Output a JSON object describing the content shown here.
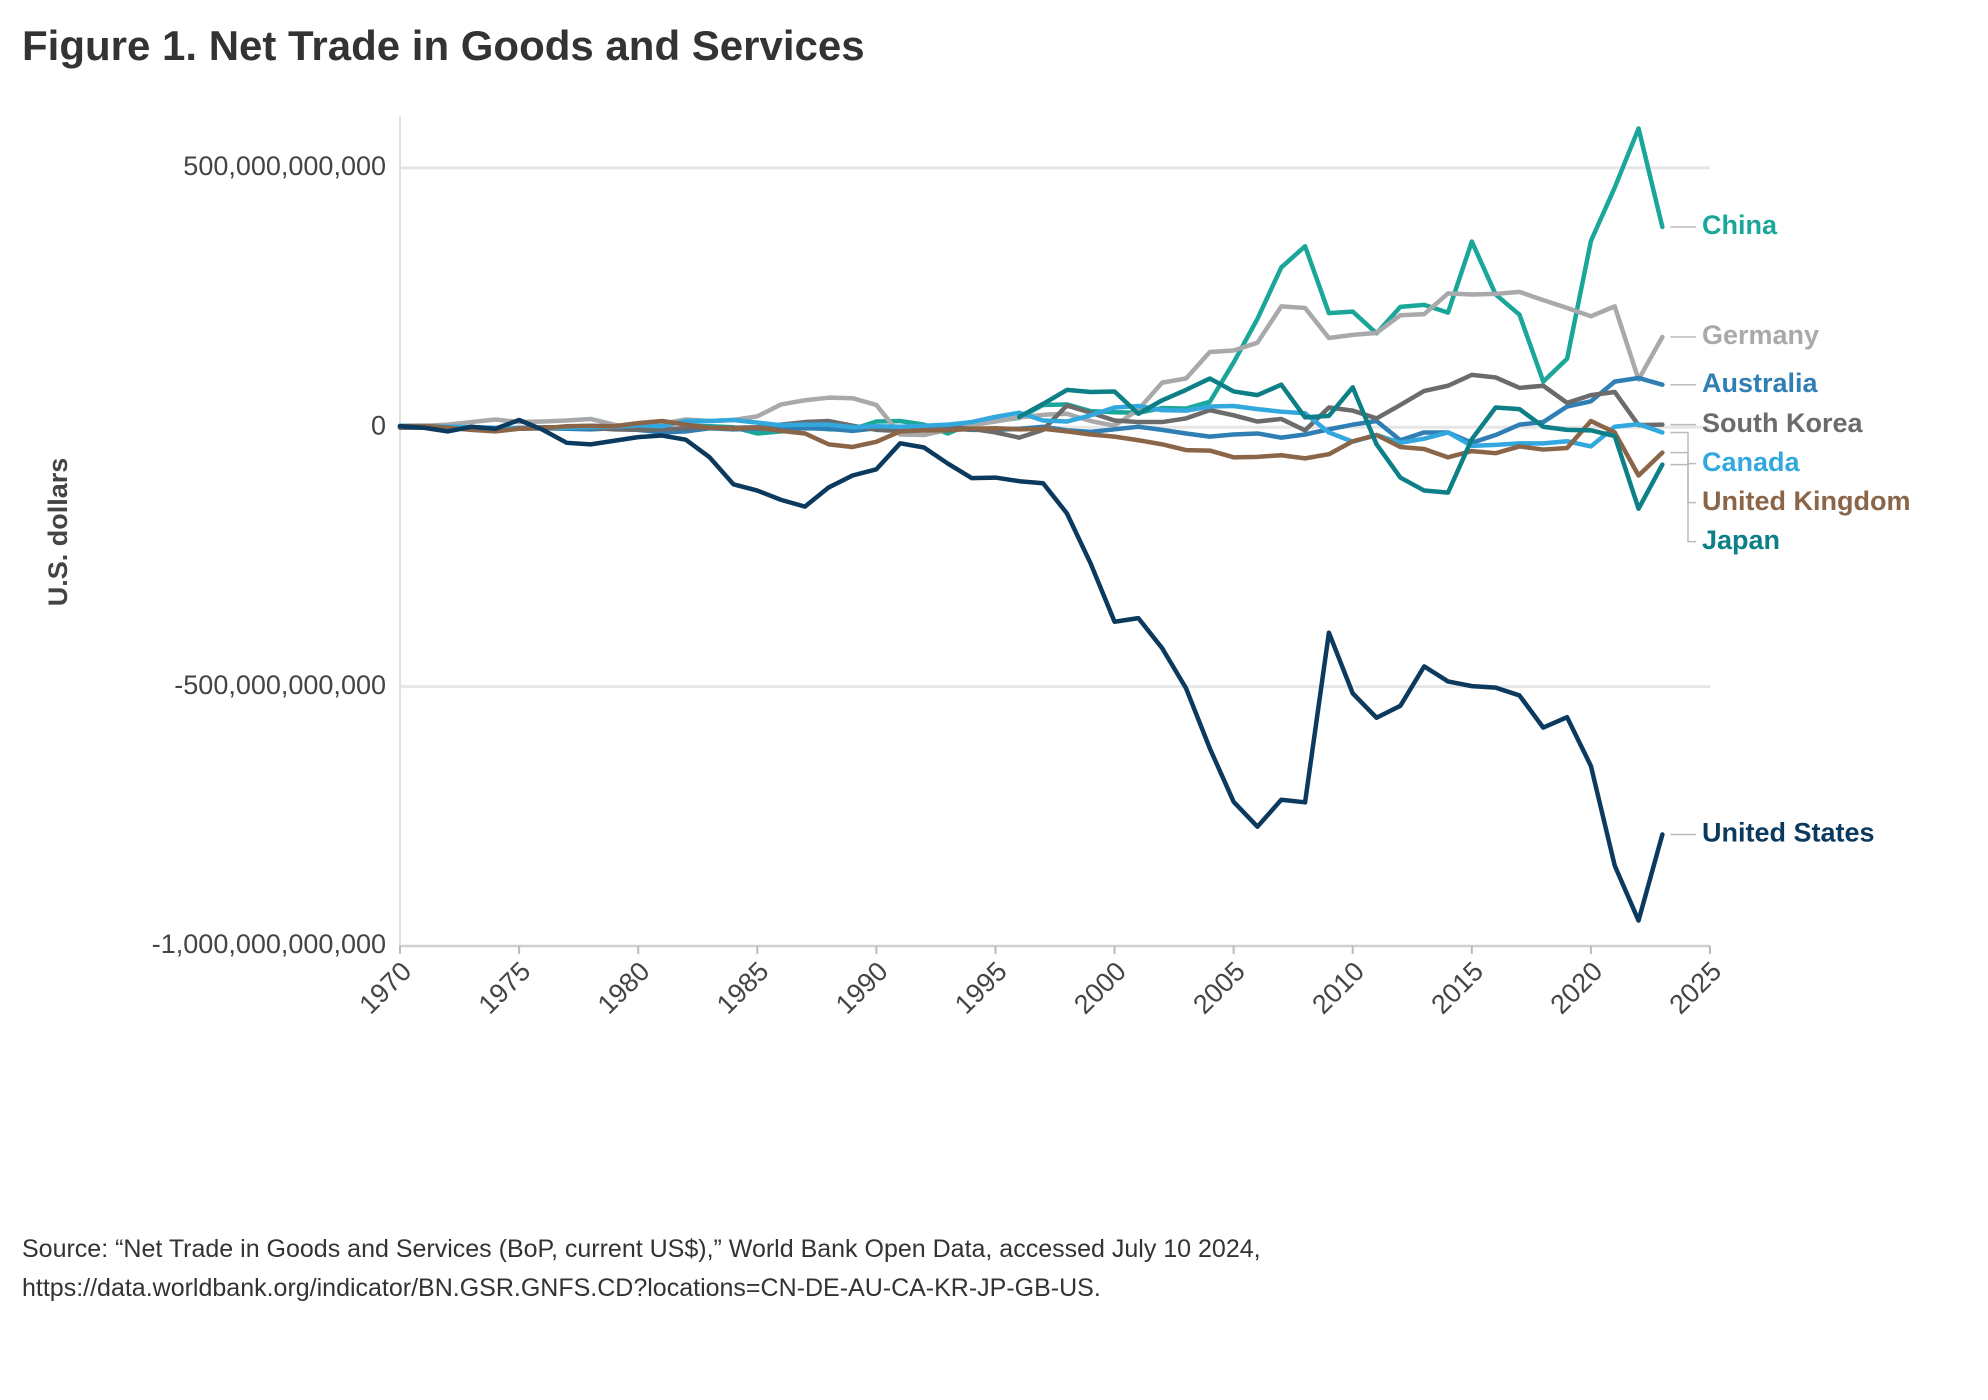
{
  "chart_data": {
    "type": "line",
    "title": "Figure 1. Net Trade in Goods and Services",
    "y_label": "U.S. dollars",
    "source": [
      "Source: “Net Trade in Goods and Services (BoP, current US$),” World Bank Open Data, accessed July 10 2024,",
      "https://data.worldbank.org/indicator/BN.GSR.GNFS.CD?locations=CN-DE-AU-CA-KR-JP-GB-US."
    ],
    "x": [
      1970,
      1971,
      1972,
      1973,
      1974,
      1975,
      1976,
      1977,
      1978,
      1979,
      1980,
      1981,
      1982,
      1983,
      1984,
      1985,
      1986,
      1987,
      1988,
      1989,
      1990,
      1991,
      1992,
      1993,
      1994,
      1995,
      1996,
      1997,
      1998,
      1999,
      2000,
      2001,
      2002,
      2003,
      2004,
      2005,
      2006,
      2007,
      2008,
      2009,
      2010,
      2011,
      2012,
      2013,
      2014,
      2015,
      2016,
      2017,
      2018,
      2019,
      2020,
      2021,
      2022,
      2023
    ],
    "xlim": [
      1970,
      2025
    ],
    "xticks": [
      1970,
      1975,
      1980,
      1985,
      1990,
      1995,
      2000,
      2005,
      2010,
      2015,
      2020,
      2025
    ],
    "ylim": [
      -1000000000000,
      600000000000
    ],
    "yticks": [
      {
        "value": -1000000000000,
        "label": "-1,000,000,000,000"
      },
      {
        "value": -500000000000,
        "label": "-500,000,000,000"
      },
      0,
      {
        "value": 500000000000,
        "label": "500,000,000,000"
      }
    ],
    "grid": true,
    "series": [
      {
        "name": "China",
        "color": "#1aa79a",
        "values": [
          null,
          null,
          null,
          null,
          null,
          null,
          null,
          null,
          null,
          null,
          null,
          null,
          4000000000.0,
          2000000000.0,
          0,
          -12000000000.0,
          -8000000000.0,
          0,
          -4000000000.0,
          -4000000000.0,
          11000000000.0,
          12000000000.0,
          5000000000.0,
          -12000000000.0,
          7000000000.0,
          12000000000.0,
          18000000000.0,
          43000000000.0,
          44000000000.0,
          31000000000.0,
          29000000000.0,
          28000000000.0,
          37000000000.0,
          36000000000.0,
          49000000000.0,
          125000000000.0,
          209000000000.0,
          308000000000.0,
          349000000000.0,
          220000000000.0,
          223000000000.0,
          181000000000.0,
          232000000000.0,
          236000000000.0,
          221000000000.0,
          358000000000.0,
          256000000000.0,
          217000000000.0,
          88000000000.0,
          132000000000.0,
          359000000000.0,
          462000000000.0,
          576000000000.0,
          386000000000.0
        ]
      },
      {
        "name": "Germany",
        "color": "#a9a9ab",
        "values": [
          3000000000.0,
          3000000000.0,
          5000000000.0,
          10000000000.0,
          15000000000.0,
          10000000000.0,
          11000000000.0,
          13000000000.0,
          16000000000.0,
          5000000000.0,
          -3000000000.0,
          7000000000.0,
          15000000000.0,
          12000000000.0,
          14000000000.0,
          21000000000.0,
          44000000000.0,
          52000000000.0,
          57000000000.0,
          56000000000.0,
          43000000000.0,
          -14000000000.0,
          -15000000000.0,
          -5000000000.0,
          4000000000.0,
          11000000000.0,
          19000000000.0,
          24000000000.0,
          26000000000.0,
          12000000000.0,
          3000000000.0,
          34000000000.0,
          86000000000.0,
          94000000000.0,
          145000000000.0,
          148000000000.0,
          163000000000.0,
          233000000000.0,
          230000000000.0,
          172000000000.0,
          178000000000.0,
          182000000000.0,
          216000000000.0,
          218000000000.0,
          258000000000.0,
          256000000000.0,
          257000000000.0,
          261000000000.0,
          245000000000.0,
          230000000000.0,
          214000000000.0,
          233000000000.0,
          92000000000.0,
          174000000000.0
        ]
      },
      {
        "name": "Australia",
        "color": "#2f7fb5",
        "values": [
          0,
          0,
          1000000000.0,
          -1000000000.0,
          -3000000000.0,
          -1000000000.0,
          -2000000000.0,
          -3000000000.0,
          -4000000000.0,
          -2000000000.0,
          -5000000000.0,
          -10000000000.0,
          -8000000000.0,
          -2000000000.0,
          -4000000000.0,
          -3000000000.0,
          -4000000000.0,
          -2000000000.0,
          -3000000000.0,
          -7000000000.0,
          -2000000000.0,
          1000000000.0,
          -1000000000.0,
          -2000000000.0,
          -5000000000.0,
          -5000000000.0,
          -3000000000.0,
          1000000000.0,
          -6000000000.0,
          -9000000000.0,
          -4000000000.0,
          1000000000.0,
          -5000000000.0,
          -12000000000.0,
          -18000000000.0,
          -14000000000.0,
          -12000000000.0,
          -20000000000.0,
          -14000000000.0,
          -4000000000.0,
          5000000000.0,
          12000000000.0,
          -25000000000.0,
          -10000000000.0,
          -10000000000.0,
          -30000000000.0,
          -15000000000.0,
          5000000000.0,
          10000000000.0,
          40000000000.0,
          50000000000.0,
          88000000000.0,
          95000000000.0,
          82000000000.0
        ]
      },
      {
        "name": "South Korea",
        "color": "#6b6b6b",
        "values": [
          -1000000000.0,
          -1000000000.0,
          0,
          0,
          -2000000000.0,
          -2000000000.0,
          0,
          0,
          -1000000000.0,
          -4000000000.0,
          -5000000000.0,
          -4000000000.0,
          -2000000000.0,
          -1000000000.0,
          -1000000000.0,
          0,
          5000000000.0,
          10000000000.0,
          12000000000.0,
          3000000000.0,
          -5000000000.0,
          -7000000000.0,
          -3000000000.0,
          1000000000.0,
          -3000000000.0,
          -10000000000.0,
          -20000000000.0,
          -5000000000.0,
          42000000000.0,
          28000000000.0,
          13000000000.0,
          10000000000.0,
          10000000000.0,
          17000000000.0,
          33000000000.0,
          23000000000.0,
          11000000000.0,
          16000000000.0,
          -6000000000.0,
          38000000000.0,
          32000000000.0,
          17000000000.0,
          43000000000.0,
          70000000000.0,
          80000000000.0,
          101000000000.0,
          96000000000.0,
          76000000000.0,
          80000000000.0,
          47000000000.0,
          62000000000.0,
          68000000000.0,
          4000000000.0,
          5000000000.0
        ]
      },
      {
        "name": "Canada",
        "color": "#33a8df",
        "values": [
          3000000000.0,
          2000000000.0,
          1000000000.0,
          0,
          -1000000000.0,
          -3000000000.0,
          -2000000000.0,
          -1000000000.0,
          0,
          1000000000.0,
          4000000000.0,
          2000000000.0,
          12000000000.0,
          12000000000.0,
          14000000000.0,
          9000000000.0,
          4000000000.0,
          5000000000.0,
          5000000000.0,
          0,
          2000000000.0,
          1000000000.0,
          3000000000.0,
          5000000000.0,
          10000000000.0,
          20000000000.0,
          28000000000.0,
          13000000000.0,
          11000000000.0,
          23000000000.0,
          38000000000.0,
          41000000000.0,
          33000000000.0,
          32000000000.0,
          40000000000.0,
          41000000000.0,
          35000000000.0,
          30000000000.0,
          27000000000.0,
          -10000000000.0,
          -28000000000.0,
          -15000000000.0,
          -30000000000.0,
          -22000000000.0,
          -10000000000.0,
          -36000000000.0,
          -34000000000.0,
          -31000000000.0,
          -31000000000.0,
          -27000000000.0,
          -37000000000.0,
          1000000000.0,
          6000000000.0,
          -10000000000.0
        ]
      },
      {
        "name": "United Kingdom",
        "color": "#8b6548",
        "values": [
          2000000000.0,
          3000000000.0,
          -1000000000.0,
          -5000000000.0,
          -8000000000.0,
          -3000000000.0,
          -2000000000.0,
          2000000000.0,
          3000000000.0,
          2000000000.0,
          8000000000.0,
          12000000000.0,
          5000000000.0,
          -1000000000.0,
          -3000000000.0,
          -1000000000.0,
          -7000000000.0,
          -12000000000.0,
          -33000000000.0,
          -38000000000.0,
          -28000000000.0,
          -8000000000.0,
          -6000000000.0,
          -6000000000.0,
          -3000000000.0,
          -2000000000.0,
          -4000000000.0,
          -3000000000.0,
          -8000000000.0,
          -14000000000.0,
          -18000000000.0,
          -25000000000.0,
          -33000000000.0,
          -44000000000.0,
          -45000000000.0,
          -58000000000.0,
          -57000000000.0,
          -54000000000.0,
          -60000000000.0,
          -52000000000.0,
          -27000000000.0,
          -15000000000.0,
          -38000000000.0,
          -42000000000.0,
          -58000000000.0,
          -46000000000.0,
          -50000000000.0,
          -37000000000.0,
          -43000000000.0,
          -40000000000.0,
          12000000000.0,
          -10000000000.0,
          -93000000000.0,
          -49000000000.0
        ]
      },
      {
        "name": "Japan",
        "color": "#0d7f86",
        "values": [
          null,
          null,
          null,
          null,
          null,
          null,
          null,
          null,
          null,
          null,
          null,
          null,
          null,
          null,
          null,
          null,
          null,
          null,
          null,
          null,
          null,
          null,
          null,
          null,
          null,
          null,
          20000000000.0,
          45000000000.0,
          72000000000.0,
          68000000000.0,
          69000000000.0,
          26000000000.0,
          52000000000.0,
          72000000000.0,
          94000000000.0,
          69000000000.0,
          62000000000.0,
          82000000000.0,
          19000000000.0,
          22000000000.0,
          77000000000.0,
          -33000000000.0,
          -97000000000.0,
          -122000000000.0,
          -126000000000.0,
          -23000000000.0,
          38000000000.0,
          35000000000.0,
          1000000000.0,
          -5000000000.0,
          -6000000000.0,
          -17000000000.0,
          -157000000000.0,
          -72000000000.0
        ]
      },
      {
        "name": "United States",
        "color": "#0b3a5e",
        "values": [
          2000000000.0,
          -1000000000.0,
          -8000000000.0,
          1000000000.0,
          -3000000000.0,
          14000000000.0,
          -5000000000.0,
          -30000000000.0,
          -33000000000.0,
          -26000000000.0,
          -19000000000.0,
          -16000000000.0,
          -24000000000.0,
          -58000000000.0,
          -110000000000.0,
          -122000000000.0,
          -140000000000.0,
          -153000000000.0,
          -116000000000.0,
          -93000000000.0,
          -81000000000.0,
          -31000000000.0,
          -39000000000.0,
          -70000000000.0,
          -98000000000.0,
          -97000000000.0,
          -104000000000.0,
          -108000000000.0,
          -166000000000.0,
          -263000000000.0,
          -375000000000.0,
          -368000000000.0,
          -426000000000.0,
          -503000000000.0,
          -619000000000.0,
          -722000000000.0,
          -770000000000.0,
          -718000000000.0,
          -723000000000.0,
          -396000000000.0,
          -513000000000.0,
          -560000000000.0,
          -537000000000.0,
          -461000000000.0,
          -490000000000.0,
          -499000000000.0,
          -502000000000.0,
          -517000000000.0,
          -579000000000.0,
          -559000000000.0,
          -653000000000.0,
          -845000000000.0,
          -951000000000.0,
          -785000000000.0
        ]
      }
    ]
  }
}
